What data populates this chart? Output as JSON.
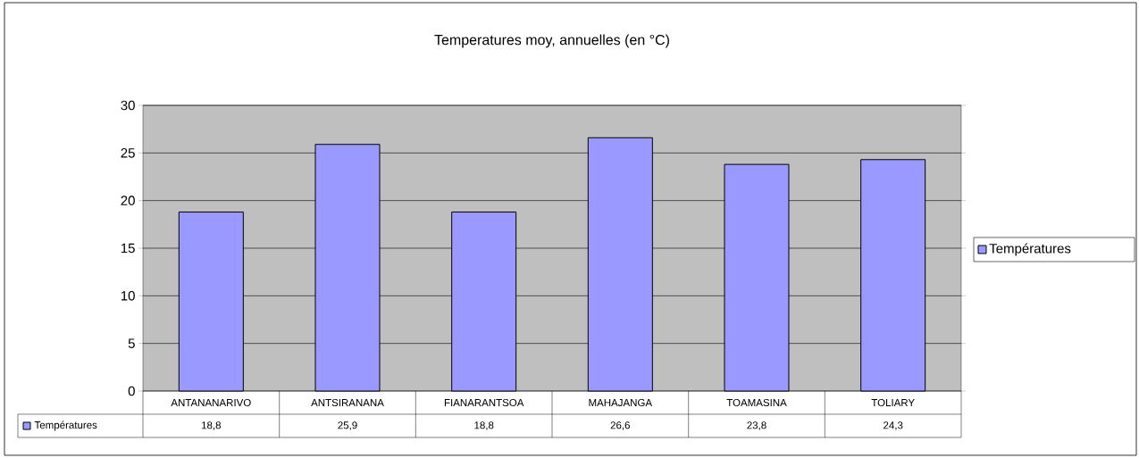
{
  "chart_data": {
    "type": "bar",
    "title": "Temperatures moy, annuelles (en °C)",
    "categories": [
      "ANTANANARIVO",
      "ANTSIRANANA",
      "FIANARANTSOA",
      "MAHAJANGA",
      "TOAMASINA",
      "TOLIARY"
    ],
    "series": [
      {
        "name": "Températures",
        "color": "#9999ff",
        "values": [
          18.8,
          25.9,
          18.8,
          26.6,
          23.8,
          24.3
        ],
        "value_labels": [
          "18,8",
          "25,9",
          "18,8",
          "26,6",
          "23,8",
          "24,3"
        ]
      }
    ],
    "ylim": [
      0,
      30
    ],
    "yticks": [
      0,
      5,
      10,
      15,
      20,
      25,
      30
    ],
    "grid": "y",
    "legend": "right"
  }
}
